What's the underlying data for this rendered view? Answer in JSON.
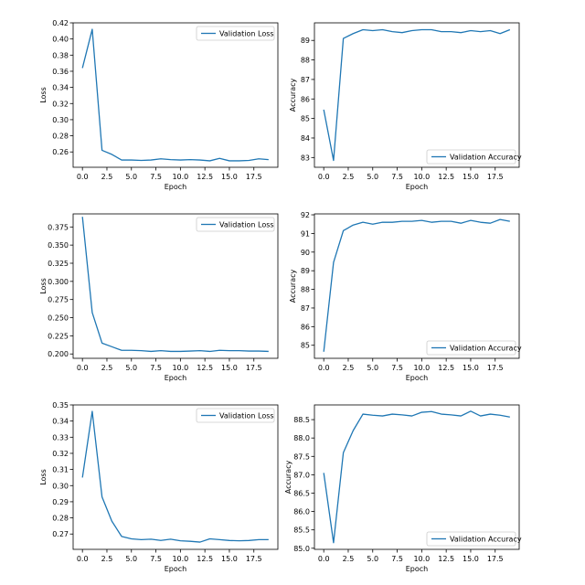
{
  "chart_data": [
    {
      "type": "line",
      "x": [
        0,
        1,
        2,
        3,
        4,
        5,
        6,
        7,
        8,
        9,
        10,
        11,
        12,
        13,
        14,
        15,
        16,
        17,
        18,
        19
      ],
      "series": [
        {
          "name": "Validation Loss",
          "color": "#1f77b4",
          "values": [
            0.364,
            0.412,
            0.262,
            0.257,
            0.25,
            0.25,
            0.2495,
            0.25,
            0.2515,
            0.2505,
            0.25,
            0.2505,
            0.25,
            0.249,
            0.252,
            0.249,
            0.249,
            0.2495,
            0.2515,
            0.2505
          ]
        }
      ],
      "xlabel": "Epoch",
      "ylabel": "Loss",
      "xlim": [
        -0.95,
        19.95
      ],
      "ylim": [
        0.241,
        0.42
      ],
      "xticks": [
        0,
        2.5,
        5,
        7.5,
        10,
        12.5,
        15,
        17.5
      ],
      "xtick_labels": [
        "0.0",
        "2.5",
        "5.0",
        "7.5",
        "10.0",
        "12.5",
        "15.0",
        "17.5"
      ],
      "yticks": [
        0.26,
        0.28,
        0.3,
        0.32,
        0.34,
        0.36,
        0.38,
        0.4,
        0.42
      ],
      "ytick_labels": [
        "0.26",
        "0.28",
        "0.30",
        "0.32",
        "0.34",
        "0.36",
        "0.38",
        "0.40",
        "0.42"
      ],
      "legend_loc": "upper right",
      "grid": false
    },
    {
      "type": "line",
      "x": [
        0,
        1,
        2,
        3,
        4,
        5,
        6,
        7,
        8,
        9,
        10,
        11,
        12,
        13,
        14,
        15,
        16,
        17,
        18,
        19
      ],
      "series": [
        {
          "name": "Validation Accuracy",
          "color": "#1f77b4",
          "values": [
            85.45,
            82.85,
            89.1,
            89.35,
            89.55,
            89.5,
            89.55,
            89.45,
            89.4,
            89.5,
            89.55,
            89.55,
            89.45,
            89.45,
            89.4,
            89.5,
            89.45,
            89.5,
            89.35,
            89.55
          ]
        }
      ],
      "xlabel": "Epoch",
      "ylabel": "Accuracy",
      "xlim": [
        -0.95,
        19.95
      ],
      "ylim": [
        82.5,
        89.9
      ],
      "xticks": [
        0,
        2.5,
        5,
        7.5,
        10,
        12.5,
        15,
        17.5
      ],
      "xtick_labels": [
        "0.0",
        "2.5",
        "5.0",
        "7.5",
        "10.0",
        "12.5",
        "15.0",
        "17.5"
      ],
      "yticks": [
        83,
        84,
        85,
        86,
        87,
        88,
        89
      ],
      "ytick_labels": [
        "83",
        "84",
        "85",
        "86",
        "87",
        "88",
        "89"
      ],
      "legend_loc": "lower right",
      "grid": false
    },
    {
      "type": "line",
      "x": [
        0,
        1,
        2,
        3,
        4,
        5,
        6,
        7,
        8,
        9,
        10,
        11,
        12,
        13,
        14,
        15,
        16,
        17,
        18,
        19
      ],
      "series": [
        {
          "name": "Validation Loss",
          "color": "#1f77b4",
          "values": [
            0.389,
            0.257,
            0.215,
            0.21,
            0.205,
            0.205,
            0.2045,
            0.2035,
            0.2045,
            0.2035,
            0.2035,
            0.204,
            0.2045,
            0.2035,
            0.205,
            0.2045,
            0.2045,
            0.204,
            0.204,
            0.2035
          ]
        }
      ],
      "xlabel": "Epoch",
      "ylabel": "Loss",
      "xlim": [
        -0.95,
        19.95
      ],
      "ylim": [
        0.194,
        0.393
      ],
      "xticks": [
        0,
        2.5,
        5,
        7.5,
        10,
        12.5,
        15,
        17.5
      ],
      "xtick_labels": [
        "0.0",
        "2.5",
        "5.0",
        "7.5",
        "10.0",
        "12.5",
        "15.0",
        "17.5"
      ],
      "yticks": [
        0.2,
        0.225,
        0.25,
        0.275,
        0.3,
        0.325,
        0.35,
        0.375
      ],
      "ytick_labels": [
        "0.200",
        "0.225",
        "0.250",
        "0.275",
        "0.300",
        "0.325",
        "0.350",
        "0.375"
      ],
      "legend_loc": "upper right",
      "grid": false
    },
    {
      "type": "line",
      "x": [
        0,
        1,
        2,
        3,
        4,
        5,
        6,
        7,
        8,
        9,
        10,
        11,
        12,
        13,
        14,
        15,
        16,
        17,
        18,
        19
      ],
      "series": [
        {
          "name": "Validation Accuracy",
          "color": "#1f77b4",
          "values": [
            84.65,
            89.45,
            91.15,
            91.45,
            91.6,
            91.5,
            91.6,
            91.6,
            91.65,
            91.65,
            91.7,
            91.6,
            91.65,
            91.65,
            91.55,
            91.7,
            91.6,
            91.55,
            91.75,
            91.65
          ]
        }
      ],
      "xlabel": "Epoch",
      "ylabel": "Accuracy",
      "xlim": [
        -0.95,
        19.95
      ],
      "ylim": [
        84.3,
        92.05
      ],
      "xticks": [
        0,
        2.5,
        5,
        7.5,
        10,
        12.5,
        15,
        17.5
      ],
      "xtick_labels": [
        "0.0",
        "2.5",
        "5.0",
        "7.5",
        "10.0",
        "12.5",
        "15.0",
        "17.5"
      ],
      "yticks": [
        85,
        86,
        87,
        88,
        89,
        90,
        91,
        92
      ],
      "ytick_labels": [
        "85",
        "86",
        "87",
        "88",
        "89",
        "90",
        "91",
        "92"
      ],
      "legend_loc": "lower right",
      "grid": false
    },
    {
      "type": "line",
      "x": [
        0,
        1,
        2,
        3,
        4,
        5,
        6,
        7,
        8,
        9,
        10,
        11,
        12,
        13,
        14,
        15,
        16,
        17,
        18,
        19
      ],
      "series": [
        {
          "name": "Validation Loss",
          "color": "#1f77b4",
          "values": [
            0.305,
            0.346,
            0.293,
            0.278,
            0.2685,
            0.267,
            0.2665,
            0.2668,
            0.266,
            0.2668,
            0.2658,
            0.2655,
            0.265,
            0.267,
            0.2665,
            0.266,
            0.2658,
            0.266,
            0.2665,
            0.2665
          ]
        }
      ],
      "xlabel": "Epoch",
      "ylabel": "Loss",
      "xlim": [
        -0.95,
        19.95
      ],
      "ylim": [
        0.2605,
        0.35
      ],
      "xticks": [
        0,
        2.5,
        5,
        7.5,
        10,
        12.5,
        15,
        17.5
      ],
      "xtick_labels": [
        "0.0",
        "2.5",
        "5.0",
        "7.5",
        "10.0",
        "12.5",
        "15.0",
        "17.5"
      ],
      "yticks": [
        0.27,
        0.28,
        0.29,
        0.3,
        0.31,
        0.32,
        0.33,
        0.34,
        0.35
      ],
      "ytick_labels": [
        "0.27",
        "0.28",
        "0.29",
        "0.30",
        "0.31",
        "0.32",
        "0.33",
        "0.34",
        "0.35"
      ],
      "legend_loc": "upper right",
      "grid": false
    },
    {
      "type": "line",
      "x": [
        0,
        1,
        2,
        3,
        4,
        5,
        6,
        7,
        8,
        9,
        10,
        11,
        12,
        13,
        14,
        15,
        16,
        17,
        18,
        19
      ],
      "series": [
        {
          "name": "Validation Accuracy",
          "color": "#1f77b4",
          "values": [
            87.05,
            85.15,
            87.6,
            88.2,
            88.65,
            88.62,
            88.6,
            88.65,
            88.63,
            88.6,
            88.7,
            88.72,
            88.65,
            88.63,
            88.6,
            88.73,
            88.6,
            88.65,
            88.62,
            88.57
          ]
        }
      ],
      "xlabel": "Epoch",
      "ylabel": "Accuracy",
      "xlim": [
        -0.95,
        19.95
      ],
      "ylim": [
        84.97,
        88.9
      ],
      "xticks": [
        0,
        2.5,
        5,
        7.5,
        10,
        12.5,
        15,
        17.5
      ],
      "xtick_labels": [
        "0.0",
        "2.5",
        "5.0",
        "7.5",
        "10.0",
        "12.5",
        "15.0",
        "17.5"
      ],
      "yticks": [
        85.0,
        85.5,
        86.0,
        86.5,
        87.0,
        87.5,
        88.0,
        88.5
      ],
      "ytick_labels": [
        "85.0",
        "85.5",
        "86.0",
        "86.5",
        "87.0",
        "87.5",
        "88.0",
        "88.5"
      ],
      "legend_loc": "lower right",
      "grid": false
    }
  ]
}
